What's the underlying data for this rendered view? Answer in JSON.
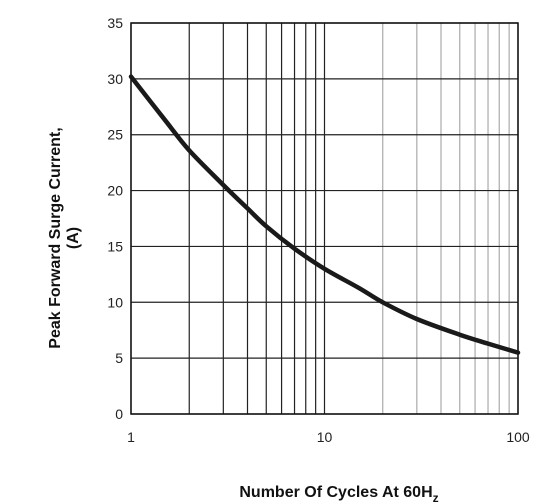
{
  "chart_data": {
    "type": "line",
    "title": "",
    "xlabel": "Number Of Cycles At 60H",
    "xlabel_subscript": "z",
    "ylabel_line1": "Peak Forward  Surge  Current,",
    "ylabel_line2": "(A)",
    "x_scale": "log",
    "xlim": [
      1,
      100
    ],
    "ylim": [
      0,
      35
    ],
    "x_ticks": [
      1,
      10,
      100
    ],
    "y_ticks": [
      0,
      5,
      10,
      15,
      20,
      25,
      30,
      35
    ],
    "grid": true,
    "series": [
      {
        "color": "#1a1a1a",
        "x": [
          1,
          1.5,
          2,
          3,
          4,
          5,
          7,
          10,
          15,
          20,
          30,
          50,
          70,
          100
        ],
        "y": [
          30.2,
          26.3,
          23.6,
          20.5,
          18.4,
          16.8,
          14.8,
          13.0,
          11.3,
          10.0,
          8.5,
          7.1,
          6.3,
          5.5
        ]
      }
    ]
  }
}
